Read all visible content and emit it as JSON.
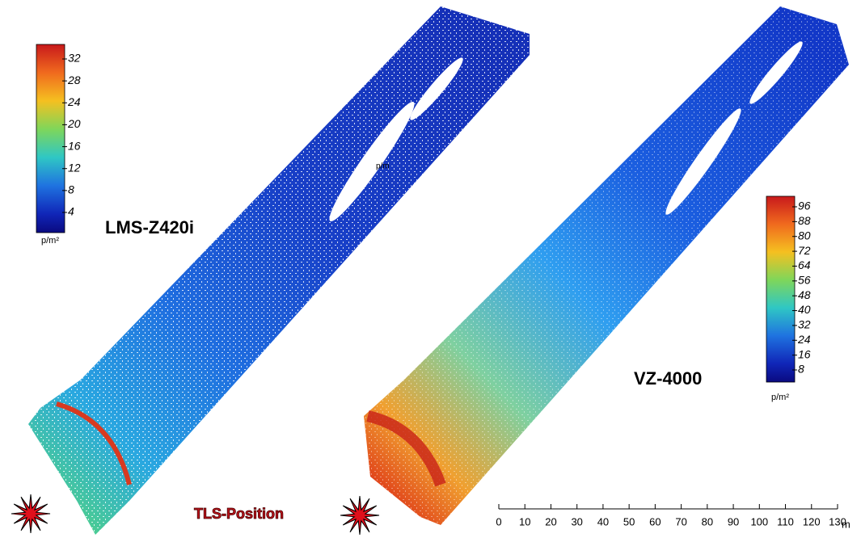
{
  "panels": [
    {
      "label": "LMS-Z420i",
      "colorbar": {
        "ticks": [
          32,
          28,
          24,
          20,
          16,
          12,
          8,
          4
        ],
        "unit": "p/m²"
      }
    },
    {
      "label": "VZ-4000",
      "colorbar": {
        "ticks": [
          96,
          88,
          80,
          72,
          64,
          56,
          48,
          40,
          32,
          24,
          16,
          8
        ],
        "unit": "p/m²"
      }
    }
  ],
  "center_label": "p/m",
  "tls_label": "TLS-Position",
  "scale_bar": {
    "ticks": [
      0,
      10,
      20,
      30,
      40,
      50,
      60,
      70,
      80,
      90,
      100,
      110,
      120,
      130
    ],
    "unit": "m"
  }
}
